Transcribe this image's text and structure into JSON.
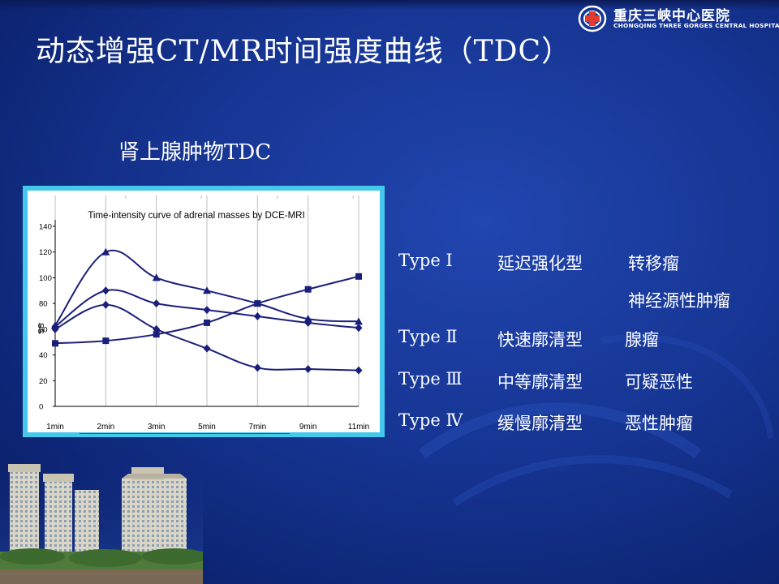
{
  "slide": {
    "title": "动态增强CT/MR时间强度曲线（TDC）",
    "subtitle": "肾上腺肿物TDC"
  },
  "logo": {
    "name_cn": "重庆三峡中心医院",
    "name_en": "CHONGQING THREE GORGES CENTRAL HOSPITAL"
  },
  "chart_data": {
    "type": "line",
    "title": "Time-intensity curve of adrenal masses by DCE-MRI",
    "ylabel": "SS",
    "xlabel": "",
    "categories": [
      "1min",
      "2min",
      "3min",
      "5min",
      "7min",
      "9min",
      "11min"
    ],
    "ylim": [
      0,
      140
    ],
    "yticks": [
      0,
      20,
      40,
      60,
      80,
      100,
      120,
      140
    ],
    "grid": "vertical",
    "series": [
      {
        "marker": "triangle",
        "values": [
          63,
          120,
          100,
          90,
          80,
          68,
          66
        ]
      },
      {
        "marker": "diamond",
        "values": [
          62,
          90,
          80,
          75,
          70,
          65,
          61
        ]
      },
      {
        "marker": "diamond",
        "values": [
          60,
          79,
          60,
          45,
          30,
          29,
          28
        ]
      },
      {
        "marker": "square",
        "values": [
          49,
          51,
          56,
          65,
          80,
          91,
          101
        ]
      }
    ],
    "line_color": "#1a1f7a"
  },
  "types": [
    {
      "label": "Type Ⅰ",
      "desc": "延迟强化型",
      "diseases": [
        "转移瘤",
        "神经源性肿瘤"
      ]
    },
    {
      "label": "Type Ⅱ",
      "desc": "快速廓清型",
      "diseases": [
        "腺瘤"
      ]
    },
    {
      "label": "Type Ⅲ",
      "desc": "中等廓清型",
      "diseases": [
        "可疑恶性"
      ]
    },
    {
      "label": "Type Ⅳ",
      "desc": "缓慢廓清型",
      "diseases": [
        "恶性肿瘤"
      ]
    }
  ]
}
